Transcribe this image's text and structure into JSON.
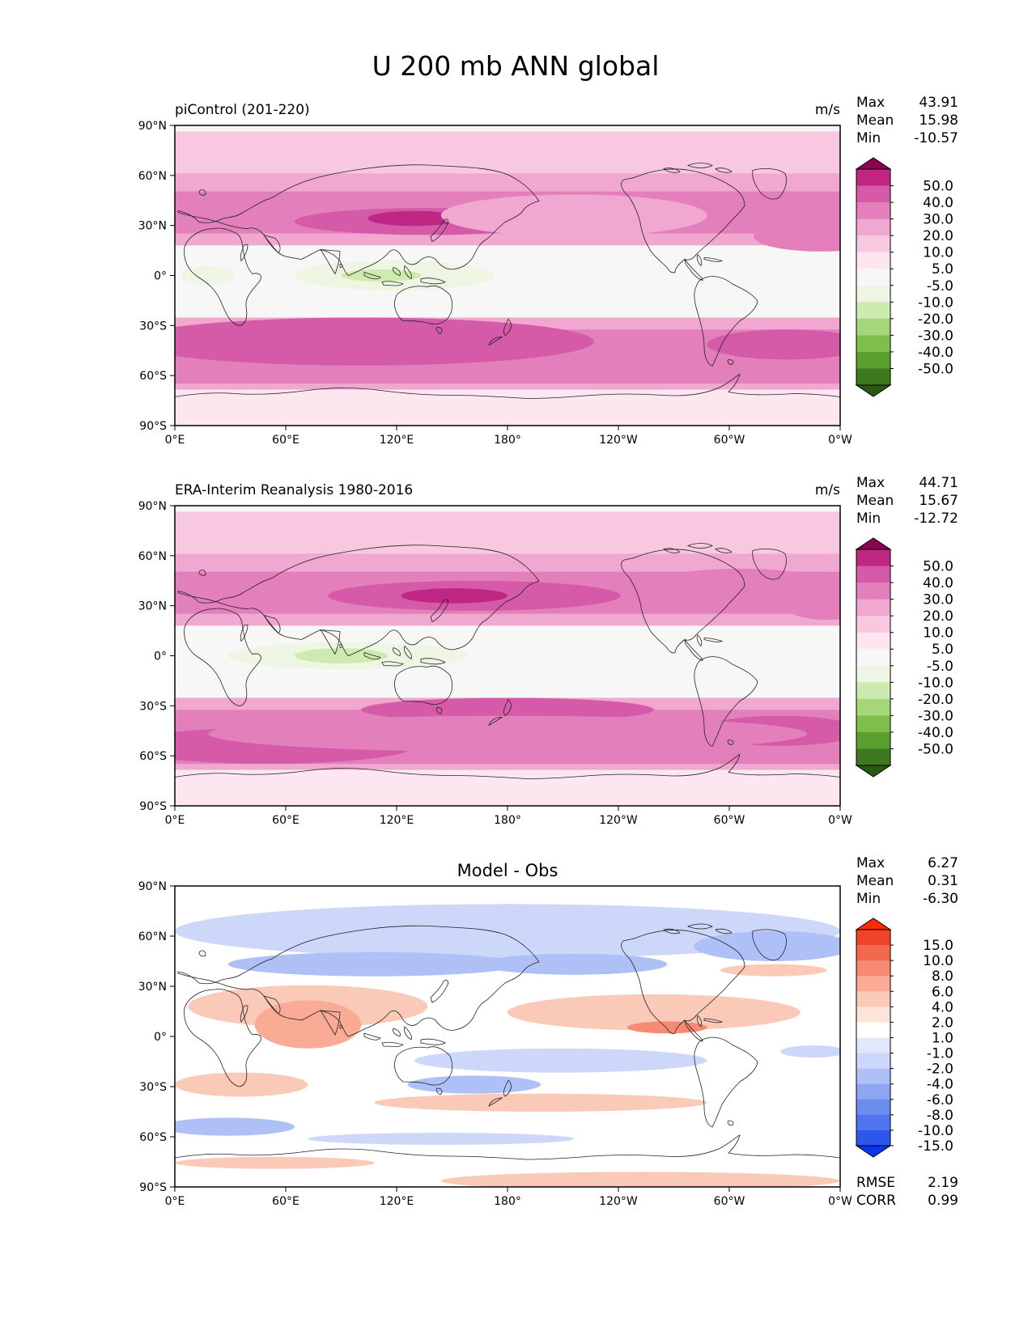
{
  "title": "U 200 mb ANN global",
  "lat_ticks": [
    "90°N",
    "60°N",
    "30°N",
    "0°",
    "30°S",
    "60°S",
    "90°S"
  ],
  "lon_ticks": [
    "0°E",
    "60°E",
    "120°E",
    "180°",
    "120°W",
    "60°W",
    "0°W"
  ],
  "stat_labels": {
    "max": "Max",
    "mean": "Mean",
    "min": "Min",
    "rmse": "RMSE",
    "corr": "CORR"
  },
  "palette": {
    "full_field": [
      "#2a5a12",
      "#3d7a1f",
      "#5aa02e",
      "#7fbe4a",
      "#a6d67a",
      "#cdeaaf",
      "#eef6e3",
      "#f7f7f7",
      "#fde6f0",
      "#f8c8e0",
      "#f0a7d0",
      "#e380bb",
      "#d55aa8",
      "#c02684",
      "#8e0152"
    ],
    "difference": [
      "#0a35f5",
      "#2f56ea",
      "#4f74ee",
      "#6d8cf0",
      "#8ea6f3",
      "#afc0f6",
      "#ccd7f9",
      "#e2e8fb",
      "#ffffff",
      "#fde3d8",
      "#fbc9b8",
      "#f9ab95",
      "#f68a72",
      "#f3694f",
      "#ef4528",
      "#ff2a00"
    ]
  },
  "chart_data": [
    {
      "type": "map",
      "title_left": "piControl (201-220)",
      "units": "m/s",
      "stats": {
        "max": "43.91",
        "mean": "15.98",
        "min": "-10.57"
      },
      "colorbar_levels": [
        "50.0",
        "40.0",
        "30.0",
        "20.0",
        "10.0",
        "5.0",
        "-5.0",
        "-10.0",
        "-20.0",
        "-30.0",
        "-40.0",
        "-50.0"
      ]
    },
    {
      "type": "map",
      "title_left": "ERA-Interim Reanalysis 1980-2016",
      "units": "m/s",
      "stats": {
        "max": "44.71",
        "mean": "15.67",
        "min": "-12.72"
      },
      "colorbar_levels": [
        "50.0",
        "40.0",
        "30.0",
        "20.0",
        "10.0",
        "5.0",
        "-5.0",
        "-10.0",
        "-20.0",
        "-30.0",
        "-40.0",
        "-50.0"
      ]
    },
    {
      "type": "map",
      "title_center": "Model - Obs",
      "stats": {
        "max": "6.27",
        "mean": "0.31",
        "min": "-6.30",
        "rmse": "2.19",
        "corr": "0.99"
      },
      "colorbar_levels": [
        "15.0",
        "10.0",
        "8.0",
        "6.0",
        "4.0",
        "2.0",
        "1.0",
        "-1.0",
        "-2.0",
        "-4.0",
        "-6.0",
        "-8.0",
        "-10.0",
        "-15.0"
      ]
    }
  ]
}
